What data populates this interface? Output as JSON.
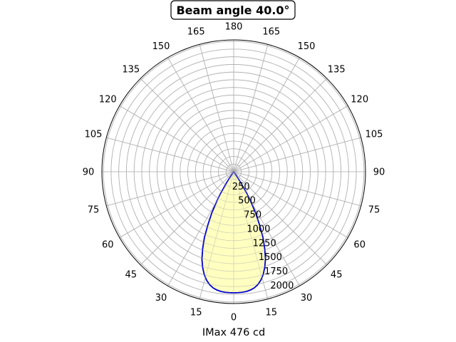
{
  "chart_data": {
    "type": "polar-area",
    "title": "Beam angle 40.0°",
    "xlabel": "IMax 476 cd",
    "angle_ticks": [
      "0",
      "15",
      "30",
      "45",
      "60",
      "75",
      "90",
      "105",
      "120",
      "135",
      "150",
      "165",
      "180",
      "165",
      "150",
      "135",
      "120",
      "105",
      "90",
      "75",
      "60",
      "45",
      "30",
      "15"
    ],
    "radial_ticks": [
      "250",
      "500",
      "750",
      "1000",
      "1250",
      "1500",
      "1750",
      "2000"
    ],
    "rlim": [
      0,
      2150
    ],
    "grid": true,
    "series": [
      {
        "angles_deg": [
          -35,
          -33,
          -31,
          -30,
          -28,
          -26,
          -24,
          -22,
          -20,
          -18,
          -16,
          -14,
          -12,
          -10,
          -8,
          -6,
          -4,
          -2,
          0,
          2,
          4,
          6,
          8,
          10,
          12,
          14,
          16,
          18,
          20,
          22,
          24,
          26,
          28,
          30,
          31,
          33,
          35
        ],
        "values": [
          0,
          200,
          420,
          545,
          760,
          955,
          1175,
          1350,
          1515,
          1640,
          1745,
          1825,
          1885,
          1925,
          1950,
          1965,
          1972,
          1974,
          1975,
          1974,
          1972,
          1965,
          1950,
          1925,
          1885,
          1825,
          1745,
          1640,
          1515,
          1350,
          1175,
          955,
          760,
          545,
          420,
          200,
          0
        ],
        "line_color": "#0000cc",
        "fill_color": "#ffffc0"
      }
    ]
  }
}
